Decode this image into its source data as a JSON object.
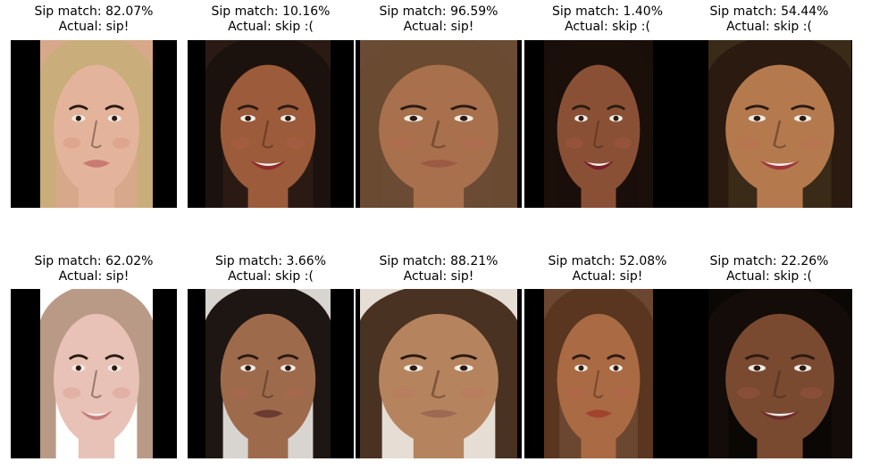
{
  "panels": [
    {
      "match_label": "Sip match: 82.07%",
      "actual_label": "Actual: sip!",
      "skin": "#e3b49b",
      "hair": "#c9ad7a",
      "lip": "#c97a72",
      "bg": "#d8a88a",
      "smile": false
    },
    {
      "match_label": "Sip match: 10.16%",
      "actual_label": "Actual: skip :(",
      "skin": "#9c5b3a",
      "hair": "#1c120d",
      "lip": "#8e2a2a",
      "bg": "#2b1a14",
      "smile": true
    },
    {
      "match_label": "Sip match: 96.59%",
      "actual_label": "Actual: sip!",
      "skin": "#a8704c",
      "hair": "#6a4a30",
      "lip": "#9b5a44",
      "bg": "#6b4b34",
      "smile": false
    },
    {
      "match_label": "Sip match: 1.40%",
      "actual_label": "Actual: skip :(",
      "skin": "#8a5036",
      "hair": "#1b0f0a",
      "lip": "#7a1f26",
      "bg": "#1a0e0a",
      "smile": true
    },
    {
      "match_label": "Sip match: 54.44%",
      "actual_label": "Actual: skip :(",
      "skin": "#b47a4e",
      "hair": "#2a1a10",
      "lip": "#a0363c",
      "bg": "#3a2a18",
      "smile": true
    },
    {
      "match_label": "Sip match: 62.02%",
      "actual_label": "Actual: sip!",
      "skin": "#e8c2b6",
      "hair": "#b99a86",
      "lip": "#c77a7a",
      "bg": "#ffffff",
      "smile": true
    },
    {
      "match_label": "Sip match: 3.66%",
      "actual_label": "Actual: skip :(",
      "skin": "#9e6a4c",
      "hair": "#1e1612",
      "lip": "#6b3a30",
      "bg": "#d8d4d0",
      "smile": false
    },
    {
      "match_label": "Sip match: 88.21%",
      "actual_label": "Actual: sip!",
      "skin": "#b5845f",
      "hair": "#4a3222",
      "lip": "#9c6a52",
      "bg": "#e6ddd4",
      "smile": false
    },
    {
      "match_label": "Sip match: 52.08%",
      "actual_label": "Actual: sip!",
      "skin": "#a96a44",
      "hair": "#5a3620",
      "lip": "#a0442e",
      "bg": "#6b4630",
      "smile": false
    },
    {
      "match_label": "Sip match: 22.26%",
      "actual_label": "Actual: skip :(",
      "skin": "#7a4a30",
      "hair": "#140c08",
      "lip": "#6e2e2a",
      "bg": "#0a0705",
      "smile": true
    }
  ]
}
